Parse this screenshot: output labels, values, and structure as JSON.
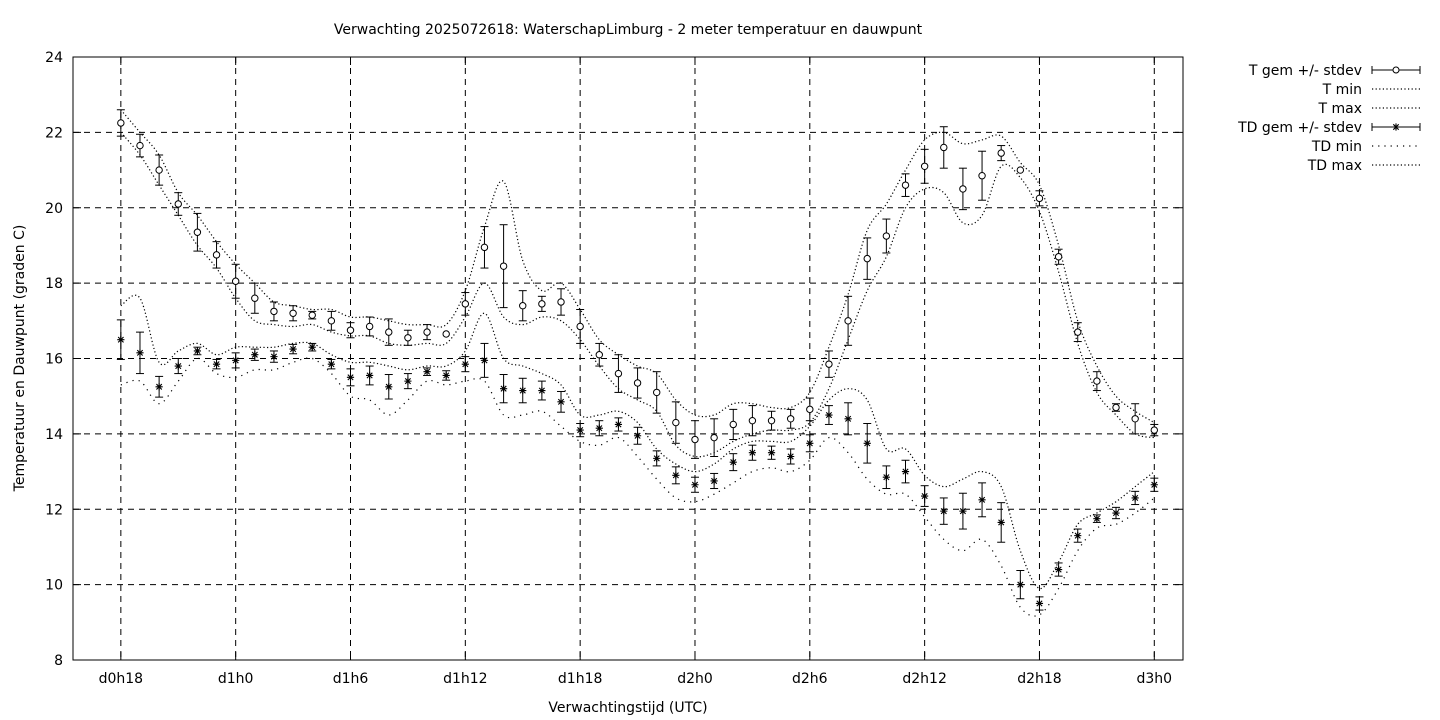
{
  "chart_data": {
    "type": "line",
    "title": "Verwachting 2025072618: WaterschapLimburg - 2 meter temperatuur en dauwpunt",
    "xlabel": "Verwachtingstijd (UTC)",
    "ylabel": "Temperatuur en Dauwpunt (graden C)",
    "ylim": [
      8,
      24
    ],
    "y_ticks": [
      8,
      10,
      12,
      14,
      16,
      18,
      20,
      22,
      24
    ],
    "x_unit": "hours",
    "xlim": [
      15.5,
      73.5
    ],
    "x_ticks": [
      {
        "x": 18,
        "label": "d0h18"
      },
      {
        "x": 24,
        "label": "d1h0"
      },
      {
        "x": 30,
        "label": "d1h6"
      },
      {
        "x": 36,
        "label": "d1h12"
      },
      {
        "x": 42,
        "label": "d1h18"
      },
      {
        "x": 48,
        "label": "d2h0"
      },
      {
        "x": 54,
        "label": "d2h6"
      },
      {
        "x": 60,
        "label": "d2h12"
      },
      {
        "x": 66,
        "label": "d2h18"
      },
      {
        "x": 72,
        "label": "d3h0"
      }
    ],
    "grid": true,
    "legend_position": "outside-right",
    "x": [
      18,
      19,
      20,
      21,
      22,
      23,
      24,
      25,
      26,
      27,
      28,
      29,
      30,
      31,
      32,
      33,
      34,
      35,
      36,
      37,
      38,
      39,
      40,
      41,
      42,
      43,
      44,
      45,
      46,
      47,
      48,
      49,
      50,
      51,
      52,
      53,
      54,
      55,
      56,
      57,
      58,
      59,
      60,
      61,
      62,
      63,
      64,
      65,
      66,
      67,
      68,
      69,
      70,
      71,
      72
    ],
    "series": [
      {
        "name": "T gem +/- stdev",
        "marker": "circle",
        "values": [
          22.25,
          21.65,
          21.0,
          20.1,
          19.35,
          18.75,
          18.05,
          17.6,
          17.25,
          17.2,
          17.15,
          17.0,
          16.75,
          16.85,
          16.7,
          16.55,
          16.7,
          16.65,
          17.45,
          18.95,
          18.45,
          17.4,
          17.45,
          17.5,
          16.85,
          16.1,
          15.6,
          15.35,
          15.1,
          14.3,
          13.85,
          13.9,
          14.25,
          14.35,
          14.35,
          14.4,
          14.65,
          15.85,
          17.0,
          18.65,
          19.25,
          20.6,
          21.1,
          21.6,
          20.5,
          20.85,
          21.45,
          21.0,
          20.25,
          18.7,
          16.7,
          15.4,
          14.7,
          14.4,
          14.1
        ],
        "stdev": [
          0.35,
          0.3,
          0.4,
          0.3,
          0.5,
          0.35,
          0.45,
          0.4,
          0.25,
          0.2,
          0.1,
          0.25,
          0.2,
          0.25,
          0.35,
          0.2,
          0.2,
          0.0,
          0.3,
          0.55,
          1.1,
          0.4,
          0.2,
          0.35,
          0.45,
          0.3,
          0.5,
          0.4,
          0.55,
          0.55,
          0.5,
          0.5,
          0.4,
          0.4,
          0.25,
          0.25,
          0.3,
          0.35,
          0.65,
          0.55,
          0.45,
          0.3,
          0.45,
          0.55,
          0.55,
          0.65,
          0.2,
          0.0,
          0.2,
          0.2,
          0.25,
          0.25,
          0.1,
          0.4,
          0.15
        ]
      },
      {
        "name": "T min",
        "style": "dotted",
        "values": [
          22.0,
          21.4,
          20.6,
          19.8,
          19.0,
          18.4,
          17.6,
          17.0,
          16.9,
          16.85,
          16.9,
          16.7,
          16.6,
          16.6,
          16.4,
          16.35,
          16.4,
          16.4,
          17.1,
          18.0,
          17.1,
          16.9,
          17.1,
          17.0,
          16.5,
          15.8,
          15.2,
          14.9,
          14.6,
          13.7,
          13.4,
          13.5,
          13.8,
          14.0,
          14.1,
          14.1,
          14.3,
          15.2,
          16.5,
          17.8,
          18.7,
          20.0,
          20.5,
          20.4,
          19.6,
          19.8,
          21.1,
          20.8,
          19.9,
          18.3,
          16.4,
          15.1,
          14.5,
          14.0,
          13.9
        ]
      },
      {
        "name": "T max",
        "style": "dotted",
        "values": [
          22.6,
          22.0,
          21.4,
          20.4,
          19.8,
          19.1,
          18.5,
          18.0,
          17.5,
          17.4,
          17.3,
          17.3,
          17.1,
          17.1,
          17.0,
          16.9,
          16.9,
          16.9,
          17.8,
          19.5,
          20.7,
          18.6,
          17.8,
          18.0,
          17.3,
          16.5,
          16.1,
          15.8,
          15.6,
          14.9,
          14.5,
          14.5,
          14.8,
          14.8,
          14.7,
          14.7,
          15.1,
          16.3,
          17.7,
          19.4,
          20.1,
          21.0,
          21.8,
          22.0,
          21.7,
          21.8,
          21.9,
          21.2,
          20.6,
          19.0,
          17.0,
          15.8,
          15.0,
          14.6,
          14.3
        ]
      },
      {
        "name": "TD gem +/- stdev",
        "marker": "star",
        "values": [
          16.5,
          16.15,
          15.25,
          15.8,
          16.2,
          15.85,
          15.95,
          16.1,
          16.05,
          16.25,
          16.3,
          15.85,
          15.5,
          15.55,
          15.25,
          15.4,
          15.65,
          15.55,
          15.85,
          15.95,
          15.2,
          15.15,
          15.15,
          14.85,
          14.1,
          14.15,
          14.25,
          13.95,
          13.35,
          12.9,
          12.65,
          12.75,
          13.25,
          13.5,
          13.5,
          13.4,
          13.75,
          14.5,
          14.4,
          13.75,
          12.85,
          13.0,
          12.35,
          11.95,
          11.95,
          12.25,
          11.65,
          10.0,
          9.5,
          10.4,
          11.3,
          11.75,
          11.9,
          12.3,
          12.65
        ]
      },
      {
        "name": "TD min",
        "style": "dotted-sparse",
        "values": [
          15.3,
          15.4,
          14.8,
          15.4,
          16.0,
          15.6,
          15.5,
          15.7,
          15.7,
          15.9,
          16.0,
          15.6,
          15.0,
          14.9,
          14.5,
          14.9,
          15.4,
          15.3,
          15.4,
          15.4,
          14.5,
          14.5,
          14.6,
          14.2,
          13.8,
          13.7,
          13.9,
          13.4,
          12.8,
          12.3,
          12.2,
          12.4,
          12.7,
          13.0,
          13.1,
          13.0,
          13.3,
          13.9,
          13.5,
          12.8,
          12.4,
          12.4,
          11.8,
          11.2,
          10.9,
          11.2,
          10.5,
          9.4,
          9.2,
          9.9,
          10.9,
          11.5,
          11.6,
          11.9,
          12.3
        ]
      },
      {
        "name": "TD max",
        "style": "dotted",
        "values": [
          17.4,
          17.6,
          15.9,
          16.2,
          16.4,
          16.1,
          16.3,
          16.3,
          16.3,
          16.4,
          16.4,
          16.1,
          15.9,
          15.9,
          15.8,
          15.7,
          15.8,
          15.8,
          16.2,
          17.2,
          16.0,
          15.8,
          15.6,
          15.3,
          14.5,
          14.5,
          14.6,
          14.3,
          13.6,
          13.2,
          13.0,
          13.2,
          13.6,
          13.8,
          13.8,
          13.8,
          14.2,
          14.9,
          15.2,
          14.9,
          13.6,
          13.6,
          12.9,
          12.6,
          12.8,
          13.0,
          12.6,
          10.9,
          9.9,
          10.6,
          11.6,
          11.9,
          12.2,
          12.6,
          13.0
        ]
      }
    ]
  }
}
